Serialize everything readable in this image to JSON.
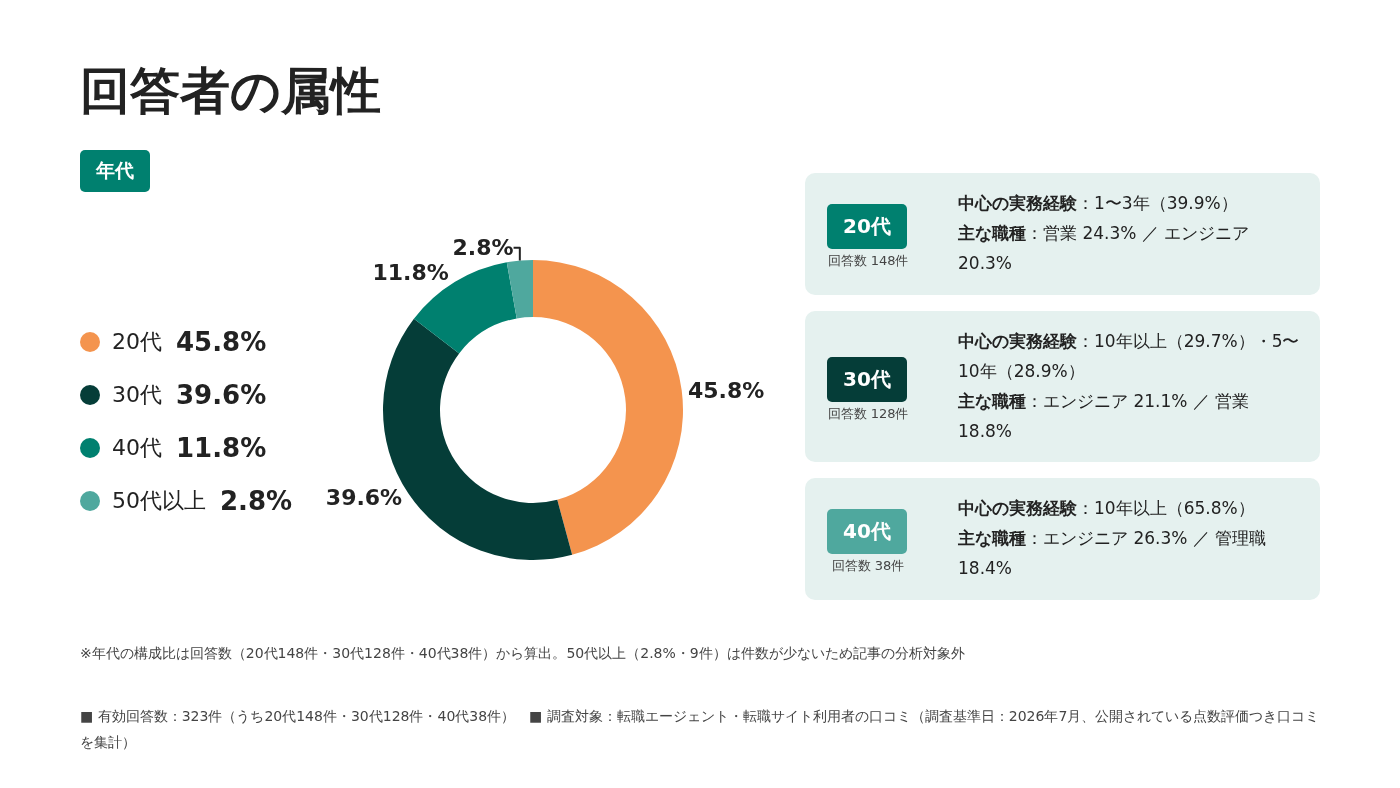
{
  "chart_data": {
    "type": "donut",
    "title": "回答者の属性",
    "subtitle": "年代",
    "categories": [
      "20代",
      "30代",
      "40代",
      "50代以上"
    ],
    "values": [
      45.8,
      39.6,
      11.8,
      2.8
    ],
    "value_labels": [
      "45.8%",
      "39.6%",
      "11.8%",
      "2.8%"
    ],
    "colors": [
      "#f4944e",
      "#053d38",
      "#00806f",
      "#4fa89e"
    ],
    "legend": "left",
    "annotations": [
      "20代",
      "回答数 148件",
      "中心の実務経験：1〜3年（39.9%）",
      "主な職種：営業 24.3% ／ エンジニア 20.3%",
      "30代",
      "回答数 128件",
      "中心の実務経験：10年以上（29.7%）・5〜10年（28.9%）",
      "主な職種：エンジニア 21.1% ／ 営業 18.8%",
      "40代",
      "回答数 38件",
      "中心の実務経験：10年以上（65.8%）",
      "主な職種：エンジニア 26.3% ／ 管理職 18.4%",
      "※年代の構成比は回答数（20代148件・30代128件・40代38件）から算出。50代以上（2.8%・9件）は件数が少ないため記事の分析対象外",
      "■ 有効回答数：323件（うち20代148件・30代128件・40代38件）　■ 調査対象：転職エージェント・転職サイト利用者の口コミ（調査基準日：2026年7月、公開されている点数評価つき口コミを集計）"
    ]
  }
}
